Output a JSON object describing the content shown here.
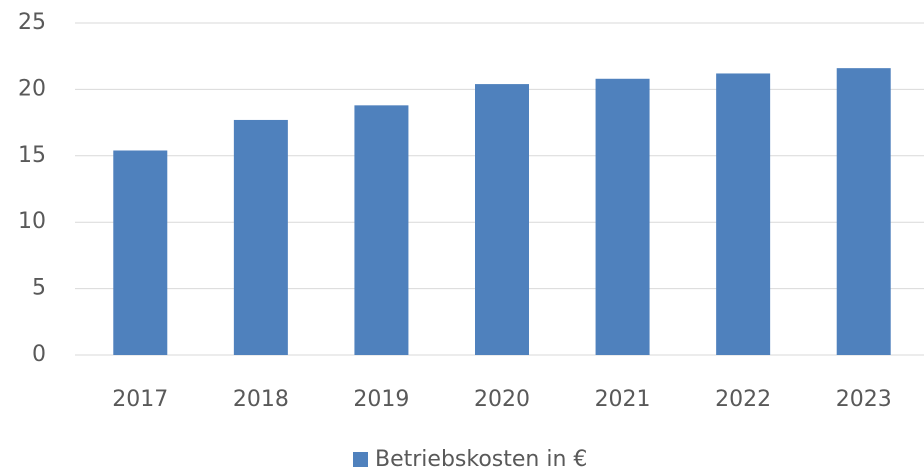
{
  "chart_data": {
    "type": "bar",
    "categories": [
      "2017",
      "2018",
      "2019",
      "2020",
      "2021",
      "2022",
      "2023"
    ],
    "series": [
      {
        "name": "Betriebskosten in €",
        "color": "#4f81bd",
        "values": [
          15.4,
          17.7,
          18.8,
          20.4,
          20.8,
          21.2,
          21.6
        ]
      }
    ],
    "ylim": [
      0,
      25
    ],
    "yticks": [
      0,
      5,
      10,
      15,
      20,
      25
    ],
    "grid": true,
    "legend": "bottom"
  }
}
